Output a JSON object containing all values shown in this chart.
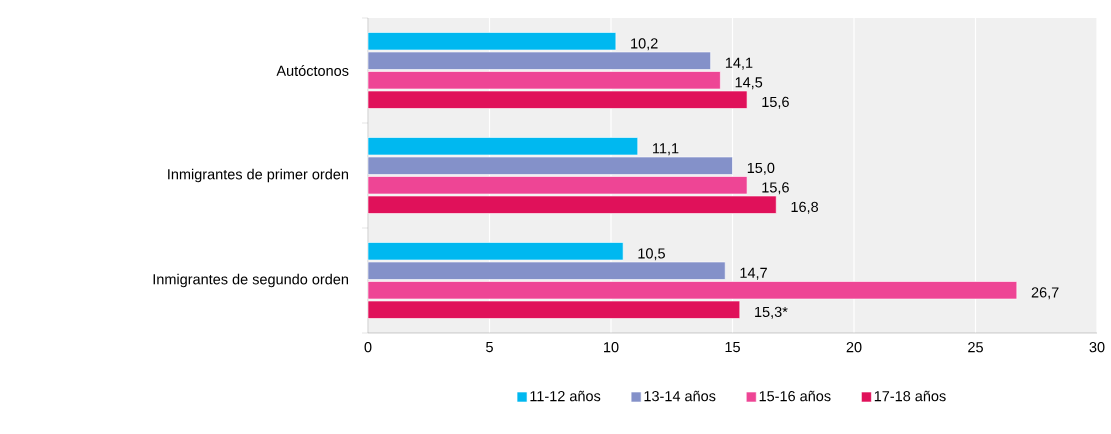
{
  "chart_data": {
    "type": "bar",
    "orientation": "horizontal",
    "categories": [
      "Autóctonos",
      "Inmigrantes de primer orden",
      "Inmigrantes de segundo orden"
    ],
    "series": [
      {
        "name": "11-12 años",
        "color": "#00b8f0",
        "values": [
          10.2,
          11.1,
          10.5
        ],
        "value_labels": [
          "10,2",
          "11,1",
          "10,5"
        ]
      },
      {
        "name": "13-14 años",
        "color": "#8491c9",
        "values": [
          14.1,
          15.0,
          14.7
        ],
        "value_labels": [
          "14,1",
          "15,0",
          "14,7"
        ]
      },
      {
        "name": "15-16 años",
        "color": "#ee4595",
        "values": [
          14.5,
          15.6,
          26.7
        ],
        "value_labels": [
          "14,5",
          "15,6",
          "26,7"
        ]
      },
      {
        "name": "17-18 años",
        "color": "#e0115a",
        "values": [
          15.6,
          16.8,
          15.3
        ],
        "value_labels": [
          "15,6",
          "16,8",
          "15,3*"
        ]
      }
    ],
    "xlim": [
      0,
      30
    ],
    "xticks": [
      0,
      5,
      10,
      15,
      20,
      25,
      30
    ],
    "grid": "x",
    "legend": "bottom"
  }
}
